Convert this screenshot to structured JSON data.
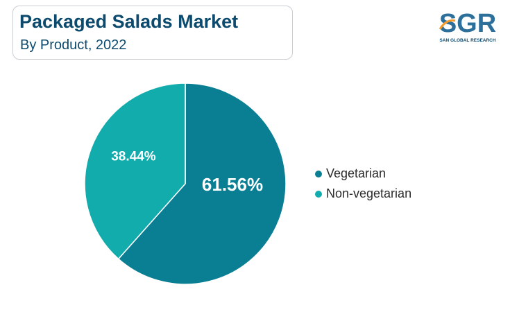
{
  "header": {
    "title": "Packaged Salads Market",
    "subtitle": "By Product, 2022"
  },
  "logo": {
    "text": "SGR",
    "tagline": "SAN GLOBAL RESEARCH"
  },
  "colors": {
    "title": "#0c4a6e",
    "vegetarian": "#0a7f93",
    "non_vegetarian": "#12acac",
    "logo_blue": "#2b6f9a",
    "logo_orange": "#f39a2a"
  },
  "chart_data": {
    "type": "pie",
    "title": "Packaged Salads Market",
    "subtitle": "By Product, 2022",
    "labels": [
      "Vegetarian",
      "Non-vegetarian"
    ],
    "values": [
      61.56,
      38.44
    ],
    "data_labels": [
      "61.56%",
      "38.44%"
    ],
    "start_angle": "12 o'clock",
    "direction": "clockwise",
    "legend_position": "right"
  }
}
